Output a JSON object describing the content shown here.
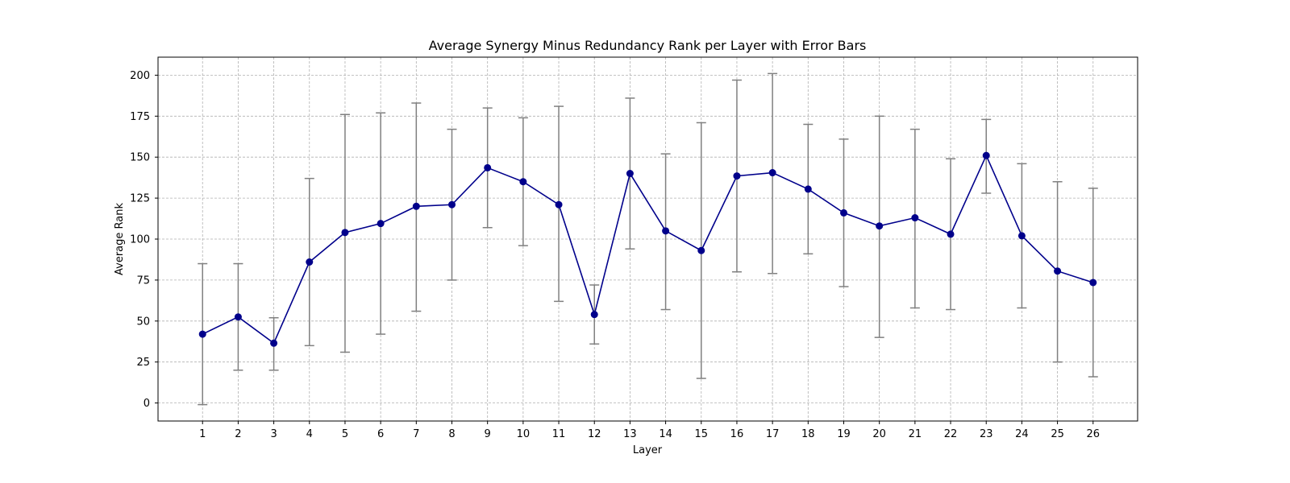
{
  "chart_data": {
    "type": "line",
    "title": "Average Synergy Minus Redundancy Rank per Layer with Error Bars",
    "xlabel": "Layer",
    "ylabel": "Average Rank",
    "x": [
      1,
      2,
      3,
      4,
      5,
      6,
      7,
      8,
      9,
      10,
      11,
      12,
      13,
      14,
      15,
      16,
      17,
      18,
      19,
      20,
      21,
      22,
      23,
      24,
      25,
      26
    ],
    "series": [
      {
        "name": "",
        "values": [
          42,
          52.5,
          36.5,
          86,
          104,
          109.5,
          120,
          121,
          143.5,
          135,
          121,
          54,
          140,
          105,
          93,
          138.5,
          140.5,
          130.5,
          116,
          108,
          113,
          103,
          151,
          102,
          80.5,
          73.5
        ],
        "error_low": [
          -1,
          20,
          20,
          35,
          31,
          42,
          56,
          75,
          107,
          96,
          62,
          36,
          94,
          57,
          15,
          80,
          79,
          91,
          71,
          40,
          58,
          57,
          128,
          58,
          25,
          16
        ],
        "error_high": [
          85,
          85,
          52,
          137,
          176,
          177,
          183,
          167,
          180,
          174,
          181,
          72,
          186,
          152,
          171,
          197,
          201,
          170,
          161,
          175,
          167,
          149,
          173,
          146,
          135,
          131
        ],
        "color": "#00008b",
        "error_color": "#808080"
      }
    ],
    "xticks": [
      "1",
      "2",
      "3",
      "4",
      "5",
      "6",
      "7",
      "8",
      "9",
      "10",
      "11",
      "12",
      "13",
      "14",
      "15",
      "16",
      "17",
      "18",
      "19",
      "20",
      "21",
      "22",
      "23",
      "24",
      "25",
      "26"
    ],
    "yticks": [
      "0",
      "25",
      "50",
      "75",
      "100",
      "125",
      "150",
      "175",
      "200"
    ],
    "xlim": [
      -0.25,
      27.25
    ],
    "ylim": [
      -11,
      211
    ],
    "grid": true
  }
}
